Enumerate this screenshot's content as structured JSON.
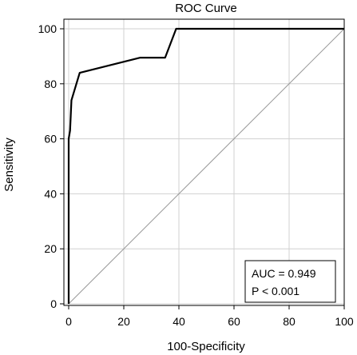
{
  "chart_data": {
    "type": "line",
    "title": "ROC Curve",
    "xlabel": "100-Specificity",
    "ylabel": "Sensitivity",
    "xlim": [
      0,
      100
    ],
    "ylim": [
      0,
      100
    ],
    "x_ticks": [
      0,
      20,
      40,
      60,
      80,
      100
    ],
    "y_ticks": [
      0,
      20,
      40,
      60,
      80,
      100
    ],
    "grid": true,
    "series": [
      {
        "x": [
          0,
          0,
          0.5,
          1,
          4,
          26,
          35,
          39,
          100
        ],
        "y": [
          0,
          60,
          63,
          74,
          84,
          89.5,
          89.5,
          100,
          100
        ],
        "color": "#000000"
      },
      {
        "x": [
          0,
          100
        ],
        "y": [
          0,
          100
        ],
        "color": "#999999"
      }
    ],
    "annotations": {
      "auc": "AUC = 0.949",
      "p_value": "P < 0.001"
    }
  }
}
